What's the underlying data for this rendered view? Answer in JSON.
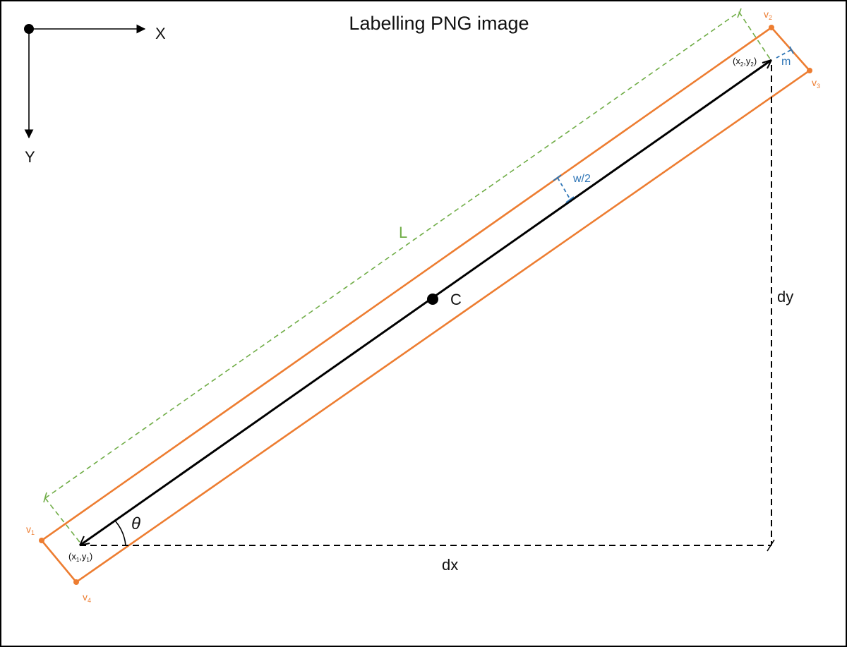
{
  "title": "Labelling PNG image",
  "axes": {
    "x_label": "X",
    "y_label": "Y"
  },
  "labels": {
    "center": "C",
    "length": "L",
    "half_width": "w/2",
    "margin": "m",
    "dx": "dx",
    "dy": "dy",
    "theta": "θ"
  },
  "points": {
    "p1": {
      "open": "(x",
      "sub1": "1",
      "mid": ",y",
      "sub2": "1",
      "close": ")"
    },
    "p2": {
      "open": "(x",
      "sub1": "2",
      "mid": ",y",
      "sub2": "2",
      "close": ")"
    }
  },
  "vertices": [
    {
      "letter": "v",
      "sub": "1"
    },
    {
      "letter": "v",
      "sub": "2"
    },
    {
      "letter": "v",
      "sub": "3"
    },
    {
      "letter": "v",
      "sub": "4"
    }
  ],
  "colors": {
    "box": "#ED7D31",
    "length": "#70AD47",
    "width": "#2E75B6",
    "line": "#000000"
  }
}
